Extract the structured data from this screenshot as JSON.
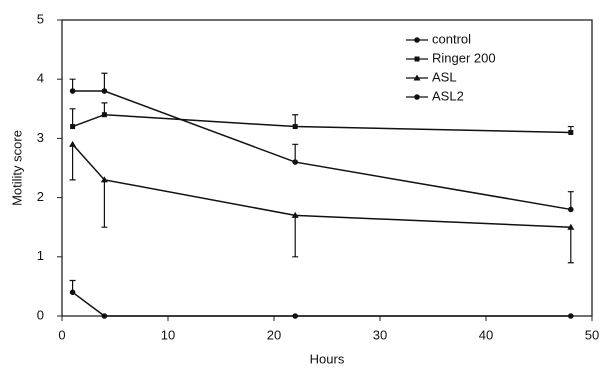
{
  "chart_data": {
    "type": "line",
    "x_label": "Hours",
    "y_label": "Motility score",
    "x": [
      1,
      4,
      22,
      48
    ],
    "series": [
      {
        "name": "control",
        "color": "#111111",
        "marker": "circle",
        "error_direction": "up",
        "values": [
          3.8,
          3.8,
          2.6,
          1.8
        ],
        "errors": [
          0.2,
          0.3,
          0.3,
          0.3
        ]
      },
      {
        "name": "Ringer 200",
        "color": "#111111",
        "marker": "square",
        "error_direction": "up",
        "values": [
          3.2,
          3.4,
          3.2,
          3.1
        ],
        "errors": [
          0.3,
          0.2,
          0.2,
          0.1
        ]
      },
      {
        "name": "ASL",
        "color": "#111111",
        "marker": "triangle",
        "error_direction": "down",
        "values": [
          2.9,
          2.3,
          1.7,
          1.5
        ],
        "errors": [
          0.6,
          0.8,
          0.7,
          0.6
        ]
      },
      {
        "name": "ASL2",
        "color": "#111111",
        "marker": "circle",
        "error_direction": "up",
        "values": [
          0.4,
          0,
          0,
          0
        ],
        "errors": [
          0.2,
          0,
          0,
          0
        ]
      }
    ],
    "xlim": [
      0,
      50
    ],
    "xticks": [
      0,
      10,
      20,
      30,
      40,
      50
    ],
    "ylim": [
      0,
      5
    ],
    "yticks": [
      0,
      1,
      2,
      3,
      4,
      5
    ],
    "legend": "top-right",
    "grid": false
  }
}
